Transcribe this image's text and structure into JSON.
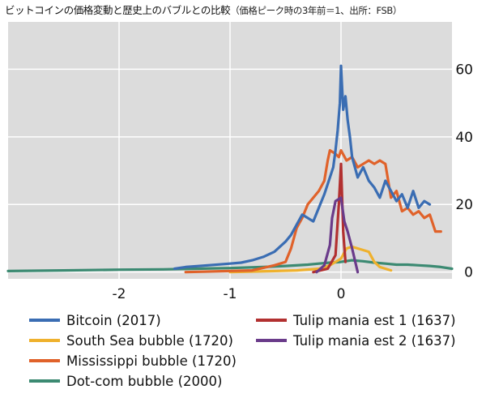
{
  "title": {
    "main": "ビットコインの価格変動と歴史上のバブルとの比較",
    "note": "（価格ピーク時の3年前＝1、出所：FSB）"
  },
  "colors": {
    "plot_bg": "#dcdcdc",
    "grid": "#ffffff",
    "Bitcoin (2017)": "#3a6db3",
    "South Sea bubble (1720)": "#efb12d",
    "Mississippi bubble (1720)": "#e0622a",
    "Dot-com bubble (2000)": "#3c8a72",
    "Tulip mania est 1 (1637)": "#b23030",
    "Tulip mania est 2 (1637)": "#6a3b8a"
  },
  "chart_data": {
    "type": "line",
    "xlim": [
      -3,
      1
    ],
    "ylim": [
      -2,
      74
    ],
    "x_ticks": [
      "-2",
      "-1",
      "0"
    ],
    "x_tick_values": [
      -2,
      -1,
      0
    ],
    "y_ticks": [
      "0",
      "20",
      "40",
      "60"
    ],
    "y_tick_values": [
      0,
      20,
      40,
      60
    ],
    "grid": true,
    "legend_position": "bottom",
    "series": [
      {
        "name": "Bitcoin (2017)",
        "x": [
          -1.5,
          -1.4,
          -1.2,
          -1.0,
          -0.9,
          -0.8,
          -0.7,
          -0.6,
          -0.5,
          -0.45,
          -0.4,
          -0.35,
          -0.3,
          -0.25,
          -0.2,
          -0.15,
          -0.1,
          -0.07,
          -0.05,
          -0.03,
          -0.01,
          0.0,
          0.02,
          0.04,
          0.06,
          0.08,
          0.1,
          0.15,
          0.2,
          0.25,
          0.3,
          0.35,
          0.4,
          0.45,
          0.5,
          0.55,
          0.6,
          0.65,
          0.7,
          0.75,
          0.8
        ],
        "y": [
          1,
          1.5,
          2,
          2.5,
          2.8,
          3.5,
          4.5,
          6,
          9,
          11,
          14,
          17,
          16,
          15,
          19,
          23,
          28,
          31,
          36,
          42,
          50,
          61,
          48,
          52,
          45,
          40,
          34,
          28,
          31,
          27,
          25,
          22,
          27,
          24,
          21,
          23,
          19,
          24,
          19,
          21,
          20
        ]
      },
      {
        "name": "South Sea bubble (1720)",
        "x": [
          -1.0,
          -0.6,
          -0.4,
          -0.2,
          -0.1,
          -0.05,
          0.0,
          0.05,
          0.1,
          0.15,
          0.2,
          0.25,
          0.3,
          0.35,
          0.4,
          0.45
        ],
        "y": [
          0,
          0.3,
          0.5,
          1,
          2,
          3,
          4,
          7,
          7.5,
          7,
          6.5,
          6,
          3,
          1.5,
          1,
          0.5
        ]
      },
      {
        "name": "Mississippi bubble (1720)",
        "x": [
          -1.4,
          -0.8,
          -0.6,
          -0.5,
          -0.45,
          -0.4,
          -0.35,
          -0.3,
          -0.25,
          -0.2,
          -0.15,
          -0.12,
          -0.1,
          -0.05,
          -0.02,
          0.0,
          0.05,
          0.1,
          0.15,
          0.2,
          0.25,
          0.3,
          0.35,
          0.4,
          0.45,
          0.5,
          0.55,
          0.6,
          0.65,
          0.7,
          0.75,
          0.8,
          0.85,
          0.9
        ],
        "y": [
          0,
          0.5,
          2,
          3,
          7,
          13,
          16,
          20,
          22,
          24,
          27,
          33,
          36,
          35,
          34,
          36,
          33,
          34,
          31,
          32,
          33,
          32,
          33,
          32,
          22,
          24,
          18,
          19,
          17,
          18,
          16,
          17,
          12,
          12
        ]
      },
      {
        "name": "Dot-com bubble (2000)",
        "x": [
          -3.0,
          -2.5,
          -2.0,
          -1.6,
          -1.3,
          -1.0,
          -0.7,
          -0.5,
          -0.3,
          -0.2,
          -0.1,
          0.0,
          0.1,
          0.2,
          0.3,
          0.4,
          0.5,
          0.6,
          0.7,
          0.8,
          0.9,
          1.0
        ],
        "y": [
          0.3,
          0.5,
          0.7,
          0.8,
          1,
          1.2,
          1.5,
          1.8,
          2.2,
          2.5,
          2.8,
          3,
          3.5,
          3.2,
          2.8,
          2.5,
          2.2,
          2.2,
          2.0,
          1.8,
          1.5,
          1.0
        ]
      },
      {
        "name": "Tulip mania est 1 (1637)",
        "x": [
          -0.25,
          -0.12,
          -0.05,
          -0.02,
          0.0,
          0.02,
          0.04
        ],
        "y": [
          0,
          1,
          5,
          20,
          32,
          12,
          3
        ]
      },
      {
        "name": "Tulip mania est 2 (1637)",
        "x": [
          -0.22,
          -0.15,
          -0.1,
          -0.08,
          -0.05,
          0.0,
          0.03,
          0.06,
          0.1,
          0.15
        ],
        "y": [
          0,
          2,
          8,
          16,
          21,
          22,
          15,
          12,
          7,
          0
        ]
      }
    ]
  },
  "legend": {
    "items": [
      "Bitcoin (2017)",
      "South Sea bubble (1720)",
      "Mississippi bubble (1720)",
      "Dot-com bubble (2000)",
      "Tulip mania est 1 (1637)",
      "Tulip mania est 2 (1637)"
    ]
  }
}
